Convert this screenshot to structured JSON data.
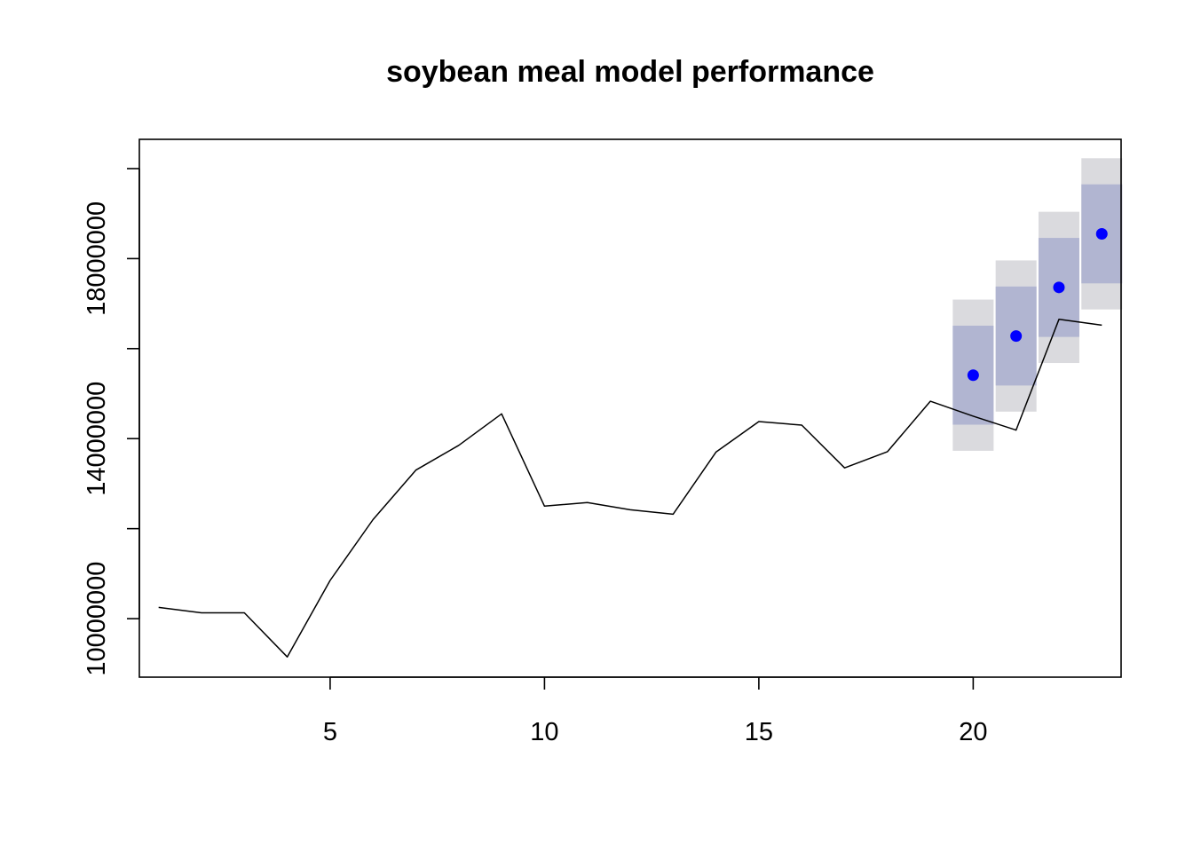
{
  "chart_data": {
    "type": "line",
    "title": "soybean meal model performance",
    "xlabel": "",
    "ylabel": "",
    "xlim": [
      0.55,
      23.45
    ],
    "ylim": [
      8700000,
      20650000
    ],
    "x_ticks": [
      5,
      10,
      15,
      20
    ],
    "x_tick_labels": [
      "5",
      "10",
      "15",
      "20"
    ],
    "y_ticks": [
      10000000,
      14000000,
      18000000
    ],
    "y_tick_labels": [
      "10000000",
      "14000000",
      "18000000"
    ],
    "y_minor_ticks": [
      10000000,
      12000000,
      14000000,
      16000000,
      18000000,
      20000000
    ],
    "grid": false,
    "colors": {
      "line": "#000000",
      "forecast_point": "#0000ff",
      "band_inner": "#b1b5d1",
      "band_outer": "#dadade"
    },
    "series": [
      {
        "kind": "line",
        "x": [
          1,
          2,
          3,
          4,
          5,
          6,
          7,
          8,
          9,
          10,
          11,
          12,
          13,
          14,
          15,
          16,
          17,
          18,
          19,
          20,
          21,
          22,
          23
        ],
        "y": [
          10250000,
          10130000,
          10130000,
          9150000,
          10850000,
          12200000,
          13300000,
          13850000,
          14550000,
          12500000,
          12580000,
          12420000,
          12320000,
          13700000,
          14380000,
          14300000,
          13350000,
          13710000,
          14830000,
          14500000,
          14190000,
          16650000,
          16520000
        ]
      },
      {
        "kind": "forecast",
        "x": [
          20,
          21,
          22,
          23
        ],
        "y": [
          15410000,
          16280000,
          17360000,
          18550000
        ],
        "inner_low": [
          14310000,
          15180000,
          16260000,
          17450000
        ],
        "inner_high": [
          16510000,
          17380000,
          18460000,
          19650000
        ],
        "outer_low": [
          13730000,
          14600000,
          15680000,
          16870000
        ],
        "outer_high": [
          17090000,
          17960000,
          19040000,
          20230000
        ]
      }
    ]
  }
}
